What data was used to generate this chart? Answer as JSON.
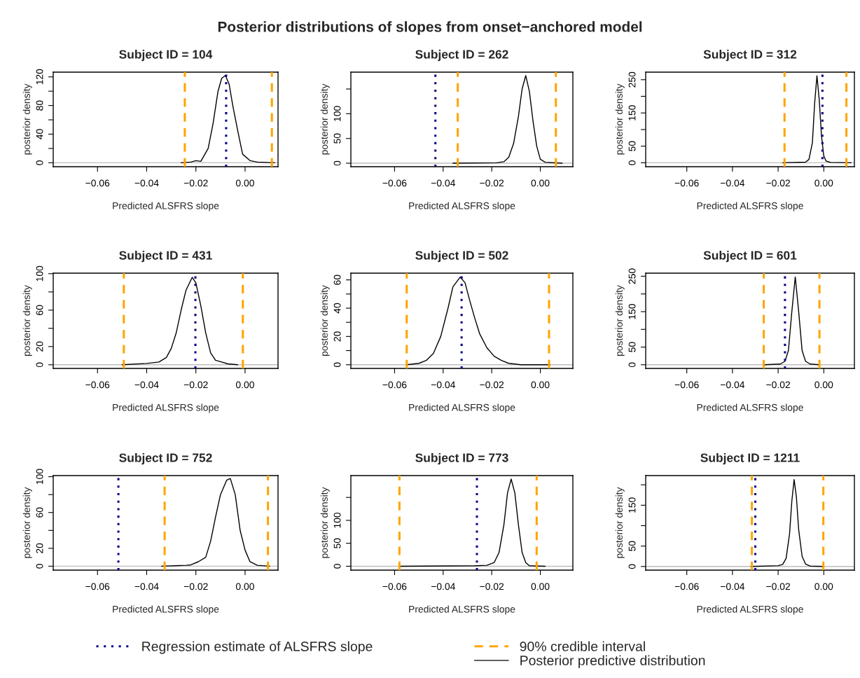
{
  "chart_data": [
    {
      "type": "line",
      "title": "Subject ID = 104",
      "xlabel": "Predicted ALSFRS slope",
      "ylabel": "posterior density",
      "annotations": [
        "Posterior distributions of slopes from onset−anchored model"
      ],
      "x": [
        -0.026,
        -0.022,
        -0.02,
        -0.018,
        -0.015,
        -0.013,
        -0.011,
        -0.0095,
        -0.008,
        -0.0065,
        -0.005,
        -0.003,
        -0.001,
        0.002,
        0.005,
        0.012
      ],
      "series": [
        {
          "name": "Posterior predictive distribution",
          "color": "#000000",
          "values": [
            0,
            1,
            3,
            2,
            20,
            55,
            100,
            118,
            122,
            110,
            80,
            45,
            12,
            3,
            1,
            0
          ]
        }
      ],
      "xlim": [
        -0.078,
        0.0134
      ],
      "xticks": [
        {
          "value": -0.06,
          "label": "−0.06"
        },
        {
          "value": -0.04,
          "label": "−0.04"
        },
        {
          "value": -0.02,
          "label": "−0.02"
        },
        {
          "value": 0,
          "label": "0.00"
        }
      ],
      "ylim": [
        -5.5,
        126.6
      ],
      "yticks": [
        0,
        {
          "value": 20,
          "label": null
        },
        40,
        {
          "value": 60,
          "label": null
        },
        80,
        {
          "value": 100,
          "label": null
        },
        120
      ],
      "ref_lines": [
        {
          "axis": "y",
          "value": 0,
          "color": "#bebebe"
        },
        {
          "axis": "x",
          "value": -0.0077,
          "label": "Regression estimate of ALSFRS slope",
          "color": "#00008b",
          "line_style": "dotted"
        },
        {
          "axis": "x",
          "value": -0.0245,
          "label": "90% credible interval",
          "color": "#ffa500",
          "line_style": "dashed"
        },
        {
          "axis": "x",
          "value": 0.0109,
          "color": "#ffa500",
          "line_style": "dashed"
        }
      ],
      "legend": "bottom"
    },
    {
      "type": "line",
      "title": "Subject ID = 262",
      "xlabel": "Predicted ALSFRS slope",
      "ylabel": "posterior density",
      "x": [
        -0.036,
        -0.018,
        -0.015,
        -0.013,
        -0.011,
        -0.009,
        -0.0075,
        -0.006,
        -0.0045,
        -0.003,
        -0.0015,
        0.0,
        0.002,
        0.009
      ],
      "series": [
        {
          "color": "#000000",
          "values": [
            0,
            1,
            3,
            12,
            40,
            95,
            150,
            177,
            145,
            85,
            35,
            8,
            2,
            0
          ]
        }
      ],
      "xlim": [
        -0.078,
        0.0134
      ],
      "xticks": [
        {
          "value": -0.06,
          "label": "−0.06"
        },
        {
          "value": -0.04,
          "label": "−0.04"
        },
        {
          "value": -0.02,
          "label": "−0.02"
        },
        {
          "value": 0,
          "label": "0.00"
        }
      ],
      "ylim": [
        -7,
        184
      ],
      "yticks": [
        0,
        50,
        100,
        {
          "value": 150,
          "label": null
        }
      ],
      "ref_lines": [
        {
          "axis": "y",
          "value": 0,
          "color": "#bebebe"
        },
        {
          "axis": "x",
          "value": -0.0432,
          "color": "#00008b",
          "line_style": "dotted"
        },
        {
          "axis": "x",
          "value": -0.034,
          "color": "#ffa500",
          "line_style": "dashed"
        },
        {
          "axis": "x",
          "value": 0.0064,
          "color": "#ffa500",
          "line_style": "dashed"
        }
      ]
    },
    {
      "type": "line",
      "title": "Subject ID = 312",
      "xlabel": "Predicted ALSFRS slope",
      "ylabel": "posterior density",
      "x": [
        -0.018,
        -0.008,
        -0.0065,
        -0.005,
        -0.004,
        -0.003,
        -0.002,
        -0.001,
        0.0,
        0.001,
        0.003,
        0.012
      ],
      "series": [
        {
          "color": "#000000",
          "values": [
            0,
            2,
            10,
            60,
            180,
            262,
            190,
            80,
            20,
            5,
            1,
            0
          ]
        }
      ],
      "xlim": [
        -0.078,
        0.0134
      ],
      "xticks": [
        {
          "value": -0.06,
          "label": "−0.06"
        },
        {
          "value": -0.04,
          "label": "−0.04"
        },
        {
          "value": -0.02,
          "label": "−0.02"
        },
        {
          "value": 0,
          "label": "0.00"
        }
      ],
      "ylim": [
        -11.8,
        272.7
      ],
      "yticks": [
        0,
        50,
        {
          "value": 100,
          "label": null
        },
        150,
        {
          "value": 200,
          "label": null
        },
        250
      ],
      "ref_lines": [
        {
          "axis": "y",
          "value": 0,
          "color": "#bebebe"
        },
        {
          "axis": "x",
          "value": -0.0006,
          "color": "#00008b",
          "line_style": "dotted"
        },
        {
          "axis": "x",
          "value": -0.0172,
          "color": "#ffa500",
          "line_style": "dashed"
        },
        {
          "axis": "x",
          "value": 0.0099,
          "color": "#ffa500",
          "line_style": "dashed"
        }
      ]
    },
    {
      "type": "line",
      "title": "Subject ID = 431",
      "xlabel": "Predicted ALSFRS slope",
      "ylabel": "posterior density",
      "x": [
        -0.05,
        -0.04,
        -0.035,
        -0.032,
        -0.03,
        -0.028,
        -0.026,
        -0.024,
        -0.0215,
        -0.02,
        -0.018,
        -0.016,
        -0.014,
        -0.012,
        -0.0095,
        -0.007,
        -0.003
      ],
      "series": [
        {
          "color": "#000000",
          "values": [
            0,
            1.5,
            3,
            8,
            18,
            35,
            60,
            82,
            96,
            90,
            65,
            35,
            13,
            5,
            3,
            1,
            0
          ]
        }
      ],
      "xlim": [
        -0.078,
        0.0134
      ],
      "xticks": [
        {
          "value": -0.06,
          "label": "−0.06"
        },
        {
          "value": -0.04,
          "label": "−0.04"
        },
        {
          "value": -0.02,
          "label": "−0.02"
        },
        {
          "value": 0,
          "label": "0.00"
        }
      ],
      "ylim": [
        -4,
        100.6
      ],
      "yticks": [
        0,
        20,
        {
          "value": 40,
          "label": null
        },
        60,
        {
          "value": 80,
          "label": null
        },
        100
      ],
      "ref_lines": [
        {
          "axis": "y",
          "value": 0,
          "color": "#bebebe"
        },
        {
          "axis": "x",
          "value": -0.0202,
          "color": "#00008b",
          "line_style": "dotted"
        },
        {
          "axis": "x",
          "value": -0.0493,
          "color": "#ffa500",
          "line_style": "dashed"
        },
        {
          "axis": "x",
          "value": -0.0009,
          "color": "#ffa500",
          "line_style": "dashed"
        }
      ]
    },
    {
      "type": "line",
      "title": "Subject ID = 502",
      "xlabel": "Predicted ALSFRS slope",
      "ylabel": "posterior density",
      "x": [
        -0.055,
        -0.05,
        -0.047,
        -0.044,
        -0.041,
        -0.038,
        -0.036,
        -0.033,
        -0.031,
        -0.029,
        -0.027,
        -0.025,
        -0.022,
        -0.019,
        -0.016,
        -0.013,
        -0.008,
        0.004
      ],
      "series": [
        {
          "color": "#000000",
          "values": [
            0,
            1,
            3,
            8,
            20,
            40,
            55,
            62,
            58,
            45,
            33,
            22,
            12,
            6,
            3,
            1,
            0,
            0
          ]
        }
      ],
      "xlim": [
        -0.078,
        0.0134
      ],
      "xticks": [
        {
          "value": -0.06,
          "label": "−0.06"
        },
        {
          "value": -0.04,
          "label": "−0.04"
        },
        {
          "value": -0.02,
          "label": "−0.02"
        },
        {
          "value": 0,
          "label": "0.00"
        }
      ],
      "ylim": [
        -2.6,
        64.75
      ],
      "yticks": [
        0,
        {
          "value": 10,
          "label": null
        },
        20,
        {
          "value": 30,
          "label": null
        },
        40,
        {
          "value": 50,
          "label": null
        },
        60
      ],
      "ref_lines": [
        {
          "axis": "y",
          "value": 0,
          "color": "#bebebe"
        },
        {
          "axis": "x",
          "value": -0.0324,
          "color": "#00008b",
          "line_style": "dotted"
        },
        {
          "axis": "x",
          "value": -0.055,
          "color": "#ffa500",
          "line_style": "dashed"
        },
        {
          "axis": "x",
          "value": 0.0036,
          "color": "#ffa500",
          "line_style": "dashed"
        }
      ]
    },
    {
      "type": "line",
      "title": "Subject ID = 601",
      "xlabel": "Predicted ALSFRS slope",
      "ylabel": "posterior density",
      "x": [
        -0.026,
        -0.019,
        -0.017,
        -0.0155,
        -0.014,
        -0.0125,
        -0.011,
        -0.0095,
        -0.008,
        -0.006,
        -0.002
      ],
      "series": [
        {
          "color": "#000000",
          "values": [
            0,
            2,
            10,
            40,
            150,
            248,
            150,
            40,
            10,
            2,
            0
          ]
        }
      ],
      "xlim": [
        -0.078,
        0.0134
      ],
      "xticks": [
        {
          "value": -0.06,
          "label": "−0.06"
        },
        {
          "value": -0.04,
          "label": "−0.04"
        },
        {
          "value": -0.02,
          "label": "−0.02"
        },
        {
          "value": 0,
          "label": "0.00"
        }
      ],
      "ylim": [
        -10.3,
        258.7
      ],
      "yticks": [
        0,
        50,
        {
          "value": 100,
          "label": null
        },
        150,
        {
          "value": 200,
          "label": null
        },
        250
      ],
      "ref_lines": [
        {
          "axis": "y",
          "value": 0,
          "color": "#bebebe"
        },
        {
          "axis": "x",
          "value": -0.017,
          "color": "#00008b",
          "line_style": "dotted"
        },
        {
          "axis": "x",
          "value": -0.0263,
          "color": "#ffa500",
          "line_style": "dashed"
        },
        {
          "axis": "x",
          "value": -0.0019,
          "color": "#ffa500",
          "line_style": "dashed"
        }
      ]
    },
    {
      "type": "line",
      "title": "Subject ID = 752",
      "xlabel": "Predicted ALSFRS slope",
      "ylabel": "posterior density",
      "x": [
        -0.034,
        -0.024,
        -0.022,
        -0.019,
        -0.016,
        -0.014,
        -0.012,
        -0.01,
        -0.0075,
        -0.006,
        -0.004,
        -0.002,
        0.0,
        0.002,
        0.005,
        0.01
      ],
      "series": [
        {
          "color": "#000000",
          "values": [
            0,
            1,
            1.5,
            5,
            10,
            28,
            55,
            80,
            96,
            98,
            80,
            40,
            18,
            5,
            1,
            0
          ]
        }
      ],
      "xlim": [
        -0.078,
        0.0134
      ],
      "xticks": [
        {
          "value": -0.06,
          "label": "−0.06"
        },
        {
          "value": -0.04,
          "label": "−0.04"
        },
        {
          "value": -0.02,
          "label": "−0.02"
        },
        {
          "value": 0,
          "label": "0.00"
        }
      ],
      "ylim": [
        -4.4,
        101.25
      ],
      "yticks": [
        0,
        20,
        {
          "value": 40,
          "label": null
        },
        60,
        {
          "value": 80,
          "label": null
        },
        100
      ],
      "ref_lines": [
        {
          "axis": "y",
          "value": 0,
          "color": "#bebebe"
        },
        {
          "axis": "x",
          "value": -0.0515,
          "color": "#00008b",
          "line_style": "dotted"
        },
        {
          "axis": "x",
          "value": -0.0327,
          "color": "#ffa500",
          "line_style": "dashed"
        },
        {
          "axis": "x",
          "value": 0.0093,
          "color": "#ffa500",
          "line_style": "dashed"
        }
      ]
    },
    {
      "type": "line",
      "title": "Subject ID = 773",
      "xlabel": "Predicted ALSFRS slope",
      "ylabel": "posterior density",
      "x": [
        -0.058,
        -0.027,
        -0.022,
        -0.019,
        -0.017,
        -0.015,
        -0.0135,
        -0.012,
        -0.0105,
        -0.009,
        -0.0075,
        -0.006,
        -0.0045,
        0.002
      ],
      "series": [
        {
          "color": "#000000",
          "values": [
            0,
            1,
            2,
            8,
            30,
            90,
            160,
            190,
            160,
            90,
            30,
            8,
            1,
            0
          ]
        }
      ],
      "xlim": [
        -0.078,
        0.0134
      ],
      "xticks": [
        {
          "value": -0.06,
          "label": "−0.06"
        },
        {
          "value": -0.04,
          "label": "−0.04"
        },
        {
          "value": -0.02,
          "label": "−0.02"
        },
        {
          "value": 0,
          "label": "0.00"
        }
      ],
      "ylim": [
        -8.5,
        197.6
      ],
      "yticks": [
        0,
        50,
        100,
        {
          "value": 150,
          "label": null
        }
      ],
      "ref_lines": [
        {
          "axis": "y",
          "value": 0,
          "color": "#bebebe"
        },
        {
          "axis": "x",
          "value": -0.0261,
          "color": "#00008b",
          "line_style": "dotted"
        },
        {
          "axis": "x",
          "value": -0.058,
          "color": "#ffa500",
          "line_style": "dashed"
        },
        {
          "axis": "x",
          "value": -0.0015,
          "color": "#ffa500",
          "line_style": "dashed"
        }
      ]
    },
    {
      "type": "line",
      "title": "Subject ID = 1211",
      "xlabel": "Predicted ALSFRS slope",
      "ylabel": "posterior density",
      "x": [
        -0.032,
        -0.02,
        -0.018,
        -0.0165,
        -0.015,
        -0.014,
        -0.013,
        -0.012,
        -0.011,
        -0.0095,
        -0.008,
        -0.006,
        0.0
      ],
      "series": [
        {
          "color": "#000000",
          "values": [
            0,
            2,
            5,
            20,
            80,
            160,
            213,
            170,
            90,
            25,
            6,
            1,
            0
          ]
        }
      ],
      "xlim": [
        -0.078,
        0.0134
      ],
      "xticks": [
        {
          "value": -0.06,
          "label": "−0.06"
        },
        {
          "value": -0.04,
          "label": "−0.04"
        },
        {
          "value": -0.02,
          "label": "−0.02"
        },
        {
          "value": 0,
          "label": "0.00"
        }
      ],
      "ylim": [
        -8.9,
        222.6
      ],
      "yticks": [
        0,
        50,
        {
          "value": 100,
          "label": null
        },
        150,
        {
          "value": 200,
          "label": null
        }
      ],
      "ref_lines": [
        {
          "axis": "y",
          "value": 0,
          "color": "#bebebe"
        },
        {
          "axis": "x",
          "value": -0.03,
          "color": "#00008b",
          "line_style": "dotted"
        },
        {
          "axis": "x",
          "value": -0.0315,
          "color": "#ffa500",
          "line_style": "dashed"
        },
        {
          "axis": "x",
          "value": -0.0002,
          "color": "#ffa500",
          "line_style": "dashed"
        }
      ]
    }
  ]
}
